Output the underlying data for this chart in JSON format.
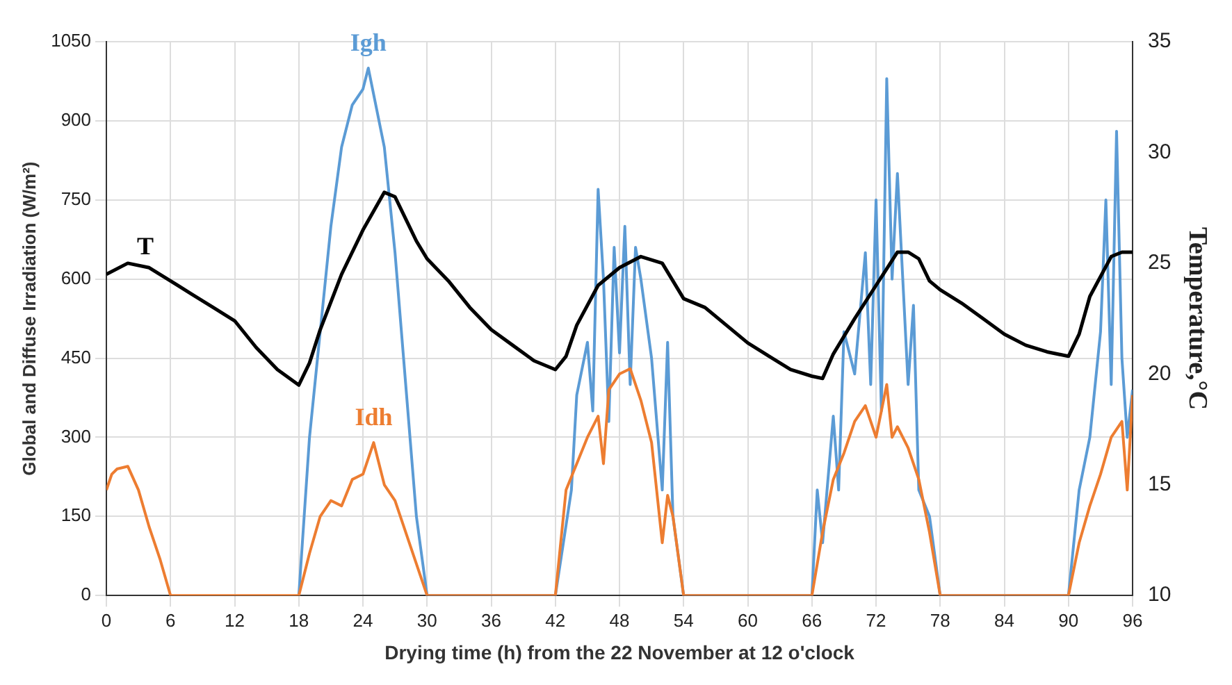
{
  "chart_data": {
    "type": "line",
    "xlabel": "Drying time (h) from the 22 November at 12 o'clock",
    "ylabel": "Global and Diffuse Irradiation (W/m²)",
    "y2label": "Temperature,°C",
    "xlim": [
      0,
      96
    ],
    "xticks": [
      0,
      6,
      12,
      18,
      24,
      30,
      36,
      42,
      48,
      54,
      60,
      66,
      72,
      78,
      84,
      90,
      96
    ],
    "ylim": [
      0,
      1050
    ],
    "yticks": [
      0,
      150,
      300,
      450,
      600,
      750,
      900,
      1050
    ],
    "y2lim": [
      10,
      35
    ],
    "y2ticks": [
      10,
      15,
      20,
      25,
      30,
      35
    ],
    "grid": true,
    "legend": false,
    "marker": "none",
    "line_style": "solid",
    "series": [
      {
        "name": "Igh",
        "color": "#5b9bd5",
        "x": [
          18,
          19,
          20,
          21,
          22,
          23,
          24,
          24.5,
          25,
          26,
          27,
          28,
          29,
          30,
          42,
          43.5,
          44,
          45,
          45.5,
          46,
          46.5,
          47,
          47.5,
          48,
          48.5,
          49,
          49.5,
          50,
          51,
          52,
          52.5,
          53,
          54,
          66,
          66.5,
          67,
          68,
          68.5,
          69,
          70,
          71,
          71.5,
          72,
          72.5,
          73,
          73.5,
          74,
          75,
          75.5,
          76,
          77,
          78,
          90,
          91,
          92,
          93,
          93.5,
          94,
          94.5,
          95,
          95.5,
          96
        ],
        "values": [
          0,
          300,
          500,
          700,
          850,
          930,
          960,
          1000,
          950,
          850,
          650,
          400,
          150,
          0,
          0,
          200,
          380,
          480,
          350,
          770,
          600,
          330,
          660,
          460,
          700,
          400,
          660,
          600,
          450,
          200,
          480,
          150,
          0,
          0,
          200,
          100,
          340,
          200,
          500,
          420,
          650,
          400,
          750,
          350,
          980,
          600,
          800,
          400,
          550,
          200,
          150,
          0,
          0,
          200,
          300,
          500,
          750,
          400,
          880,
          450,
          300,
          390
        ]
      },
      {
        "name": "Idh",
        "color": "#ed7d31",
        "x": [
          0,
          0.5,
          1,
          2,
          3,
          4,
          5,
          6,
          18,
          19,
          20,
          21,
          22,
          23,
          24,
          25,
          26,
          27,
          28,
          29,
          30,
          42,
          43,
          44,
          45,
          46,
          46.5,
          47,
          48,
          49,
          50,
          51,
          52,
          52.5,
          53,
          54,
          66,
          67,
          68,
          69,
          70,
          71,
          72,
          73,
          73.5,
          74,
          75,
          76,
          77,
          78,
          90,
          91,
          92,
          93,
          94,
          95,
          95.5,
          96
        ],
        "values": [
          200,
          230,
          240,
          245,
          200,
          130,
          70,
          0,
          0,
          80,
          150,
          180,
          170,
          220,
          230,
          290,
          210,
          180,
          120,
          60,
          0,
          0,
          200,
          250,
          300,
          340,
          250,
          390,
          420,
          430,
          370,
          290,
          100,
          190,
          150,
          0,
          0,
          120,
          220,
          270,
          330,
          360,
          300,
          400,
          300,
          320,
          280,
          220,
          120,
          0,
          0,
          100,
          170,
          230,
          300,
          330,
          200,
          380
        ]
      },
      {
        "name": "T",
        "color": "#000000",
        "axis": "y2",
        "x": [
          0,
          2,
          4,
          6,
          8,
          10,
          12,
          14,
          16,
          18,
          19,
          20,
          22,
          24,
          26,
          27,
          28,
          29,
          30,
          32,
          34,
          36,
          38,
          40,
          42,
          43,
          44,
          46,
          48,
          50,
          52,
          53,
          54,
          56,
          58,
          60,
          62,
          64,
          66,
          67,
          68,
          70,
          72,
          74,
          75,
          76,
          77,
          78,
          80,
          82,
          84,
          86,
          88,
          90,
          91,
          92,
          94,
          95,
          96
        ],
        "values": [
          24.5,
          25,
          24.8,
          24.2,
          23.6,
          23,
          22.4,
          21.2,
          20.2,
          19.5,
          20.5,
          22,
          24.5,
          26.5,
          28.2,
          28,
          27,
          26,
          25.2,
          24.2,
          23,
          22,
          21.3,
          20.6,
          20.2,
          20.8,
          22.2,
          24,
          24.8,
          25.3,
          25,
          24.2,
          23.4,
          23,
          22.2,
          21.4,
          20.8,
          20.2,
          19.9,
          19.8,
          20.9,
          22.5,
          24,
          25.5,
          25.5,
          25.2,
          24.2,
          23.8,
          23.2,
          22.5,
          21.8,
          21.3,
          21,
          20.8,
          21.8,
          23.5,
          25.3,
          25.5,
          25.5
        ]
      }
    ]
  }
}
